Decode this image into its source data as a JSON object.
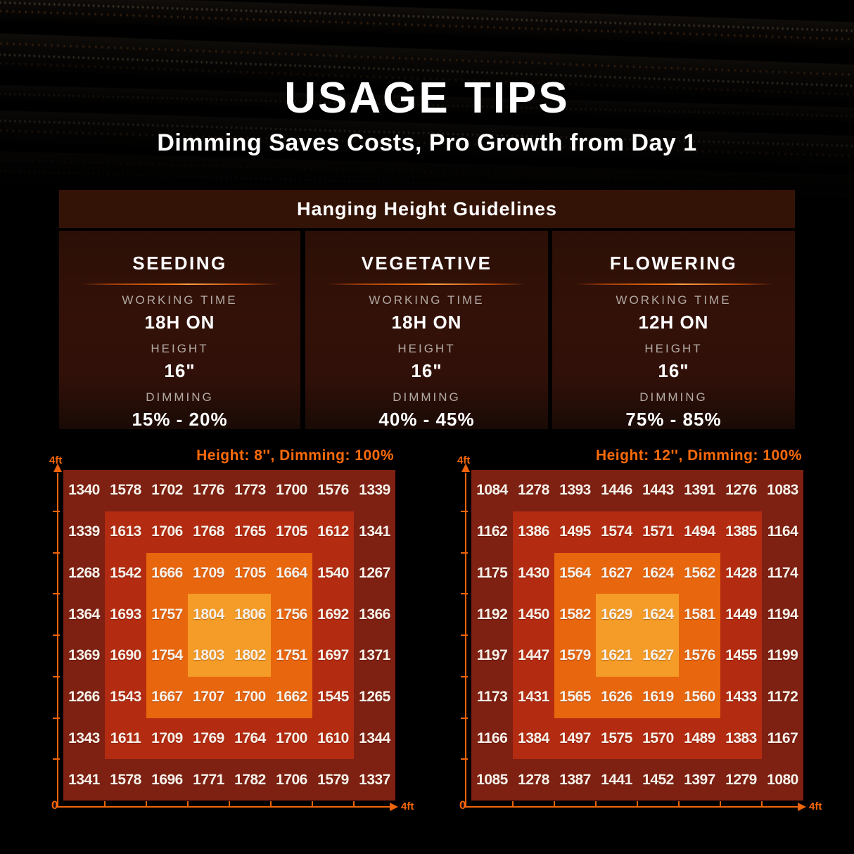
{
  "header": {
    "title": "USAGE TIPS",
    "subtitle": "Dimming Saves Costs, Pro Growth from Day 1"
  },
  "guidelines": {
    "title": "Hanging Height Guidelines",
    "columns": [
      {
        "stage": "SEEDING",
        "rows": [
          {
            "label": "WORKING TIME",
            "value": "18H ON"
          },
          {
            "label": "HEIGHT",
            "value": "16\""
          },
          {
            "label": "DIMMING",
            "value": "15% - 20%"
          }
        ]
      },
      {
        "stage": "VEGETATIVE",
        "rows": [
          {
            "label": "WORKING TIME",
            "value": "18H ON"
          },
          {
            "label": "HEIGHT",
            "value": "16\""
          },
          {
            "label": "DIMMING",
            "value": "40% - 45%"
          }
        ]
      },
      {
        "stage": "FLOWERING",
        "rows": [
          {
            "label": "WORKING TIME",
            "value": "12H ON"
          },
          {
            "label": "HEIGHT",
            "value": "16\""
          },
          {
            "label": "DIMMING",
            "value": "75% - 85%"
          }
        ]
      }
    ]
  },
  "chart_data": [
    {
      "type": "heatmap",
      "title": "Height: 8'', Dimming: 100%",
      "y_max_label": "4ft",
      "x_max_label": "4ft",
      "origin_label": "0",
      "x_range_ft": [
        0,
        4
      ],
      "y_range_ft": [
        0,
        4
      ],
      "grid": false,
      "zone_colors": [
        "#7e2012",
        "#b32b11",
        "#e8660e",
        "#f49c27"
      ],
      "values": [
        [
          1340,
          1578,
          1702,
          1776,
          1773,
          1700,
          1576,
          1339
        ],
        [
          1339,
          1613,
          1706,
          1768,
          1765,
          1705,
          1612,
          1341
        ],
        [
          1268,
          1542,
          1666,
          1709,
          1705,
          1664,
          1540,
          1267
        ],
        [
          1364,
          1693,
          1757,
          1804,
          1806,
          1756,
          1692,
          1366
        ],
        [
          1369,
          1690,
          1754,
          1803,
          1802,
          1751,
          1697,
          1371
        ],
        [
          1266,
          1543,
          1667,
          1707,
          1700,
          1662,
          1545,
          1265
        ],
        [
          1343,
          1611,
          1709,
          1769,
          1764,
          1700,
          1610,
          1344
        ],
        [
          1341,
          1578,
          1696,
          1771,
          1782,
          1706,
          1579,
          1337
        ]
      ]
    },
    {
      "type": "heatmap",
      "title": "Height: 12'', Dimming: 100%",
      "y_max_label": "4ft",
      "x_max_label": "4ft",
      "origin_label": "0",
      "x_range_ft": [
        0,
        4
      ],
      "y_range_ft": [
        0,
        4
      ],
      "grid": false,
      "zone_colors": [
        "#7e2012",
        "#b32b11",
        "#e8660e",
        "#f49c27"
      ],
      "values": [
        [
          1084,
          1278,
          1393,
          1446,
          1443,
          1391,
          1276,
          1083
        ],
        [
          1162,
          1386,
          1495,
          1574,
          1571,
          1494,
          1385,
          1164
        ],
        [
          1175,
          1430,
          1564,
          1627,
          1624,
          1562,
          1428,
          1174
        ],
        [
          1192,
          1450,
          1582,
          1629,
          1624,
          1581,
          1449,
          1194
        ],
        [
          1197,
          1447,
          1579,
          1621,
          1627,
          1576,
          1455,
          1199
        ],
        [
          1173,
          1431,
          1565,
          1626,
          1619,
          1560,
          1433,
          1172
        ],
        [
          1166,
          1384,
          1497,
          1575,
          1570,
          1489,
          1383,
          1167
        ],
        [
          1085,
          1278,
          1387,
          1441,
          1452,
          1397,
          1279,
          1080
        ]
      ]
    }
  ],
  "colors": {
    "accent_orange": "#f6670a",
    "axis_orange": "#ef640a",
    "panel_brown": "#341307",
    "label_gray": "#b3aba4",
    "value_white": "#f7f1e9"
  }
}
